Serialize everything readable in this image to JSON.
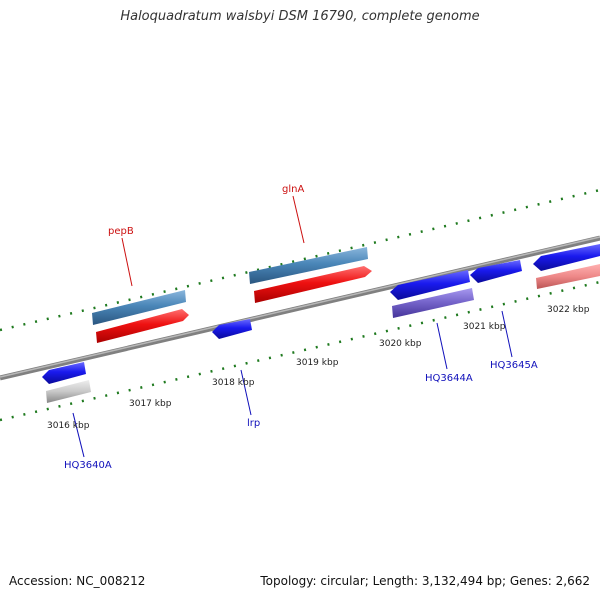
{
  "title": "Haloquadratum walsbyi DSM 16790, complete genome",
  "footer": {
    "accession": "Accession: NC_008212",
    "topology": "Topology: circular; Length: 3,132,494 bp; Genes: 2,662"
  },
  "scale_labels": [
    "3016 kbp",
    "3017 kbp",
    "3018 kbp",
    "3019 kbp",
    "3020 kbp",
    "3021 kbp",
    "3022 kbp"
  ],
  "genes": {
    "pepB": "pepB",
    "glnA": "glnA",
    "lrp": "lrp",
    "HQ3640A": "HQ3640A",
    "HQ3644A": "HQ3644A",
    "HQ3645A": "HQ3645A"
  },
  "colors": {
    "backbone": "#808080",
    "forward_cds": "#ee1111",
    "forward_gene": "#4a86b8",
    "reverse_cds": "#1a1aee",
    "tick_green": "#1f7a1f",
    "label_red": "#cc1111",
    "label_blue": "#1111bb",
    "pseudo_gene": "#c8c8c8",
    "rna_purple": "#7766cc",
    "pink_feature": "#ee8888"
  }
}
